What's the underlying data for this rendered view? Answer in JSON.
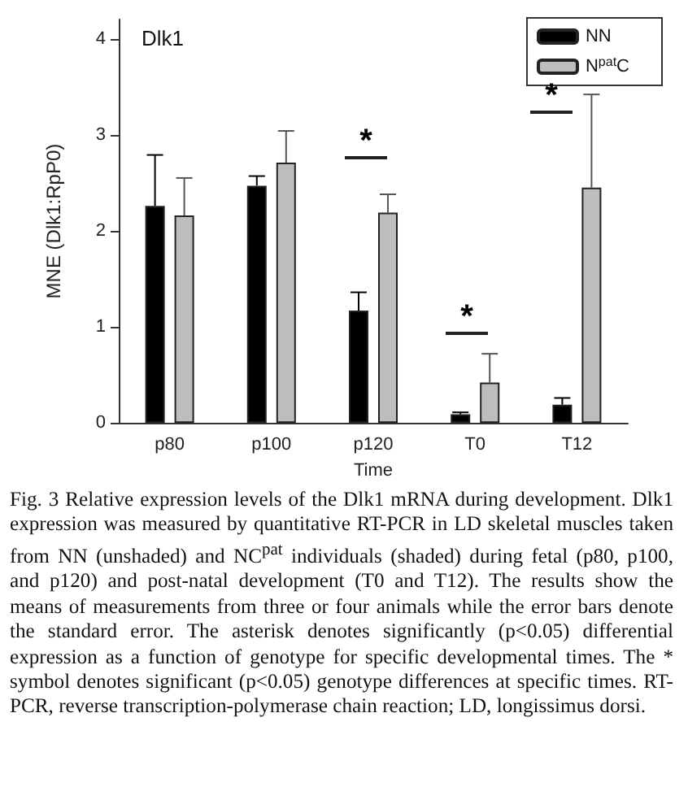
{
  "chart_data": {
    "type": "bar",
    "title": "Dlk1",
    "xlabel": "Time",
    "ylabel": "MNE (Dlk1:RpP0)",
    "categories": [
      "p80",
      "p100",
      "p120",
      "T0",
      "T12"
    ],
    "series": [
      {
        "name": "NN",
        "color": "#000000",
        "values": [
          2.26,
          2.47,
          1.17,
          0.09,
          0.19
        ],
        "errors": [
          [
            2.26,
            2.79
          ],
          [
            2.47,
            2.57
          ],
          [
            1.17,
            1.36
          ],
          [
            0.09,
            0.11
          ],
          [
            0.19,
            0.26
          ]
        ]
      },
      {
        "name": "N$^{pat}$C",
        "color": "#bdbdbd",
        "values": [
          2.16,
          2.71,
          2.19,
          0.42,
          2.45
        ],
        "errors": [
          [
            2.16,
            2.55
          ],
          [
            2.71,
            3.04
          ],
          [
            2.19,
            2.38
          ],
          [
            0.42,
            0.72
          ],
          [
            2.45,
            3.42
          ]
        ]
      }
    ],
    "ylim": [
      0,
      4.2
    ],
    "yticks": [
      0,
      1,
      2,
      3,
      4
    ],
    "grid": false,
    "legend": "top right",
    "annotations": [
      "*",
      "*",
      "*",
      "Fig. 3 Relative expression levels of the Dlk1 mRNA during development. Dlk1 expression was measured by quantitative RT-PCR in LD skeletal muscles taken from NN (unshaded) and NC$^{pat}$ individuals (shaded) during fetal (p80, p100, and p120) and post-natal development (T0 and T12). The results show the means of measurements from three or four animals while the error bars denote the standard error. The asterisk denotes significantly (p<0.05) differential expression as a function of genotype for specific developmental times. The * symbol denotes significant (p<0.05) genotype differences at specific times. RT-PCR, reverse transcription-polymerase chain reaction; LD, longissimus dorsi."
    ]
  }
}
